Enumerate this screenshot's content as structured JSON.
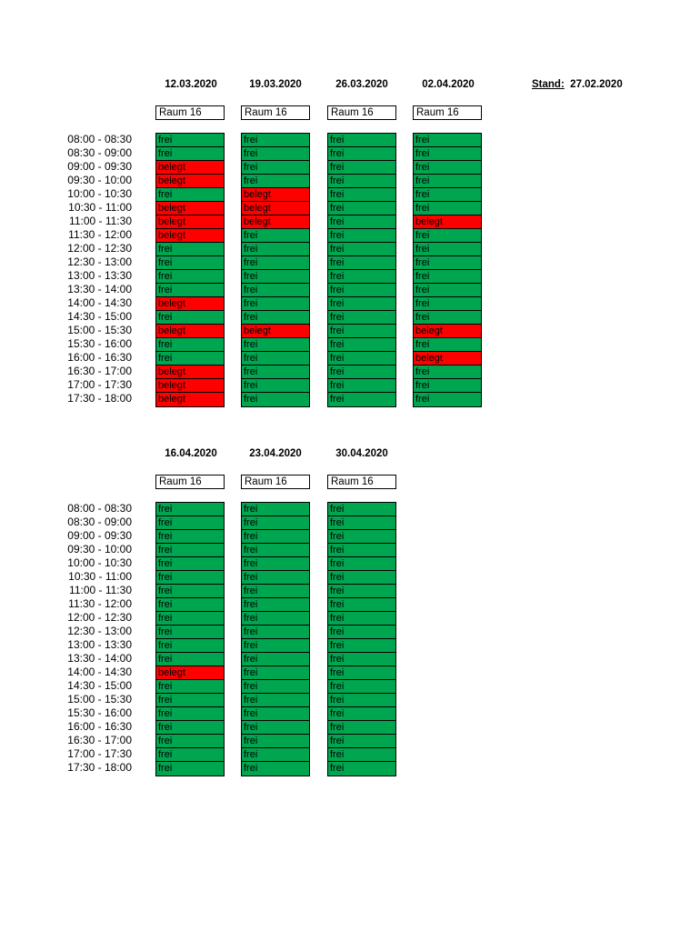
{
  "stand": {
    "label": "Stand:",
    "date": "27.02.2020"
  },
  "colors": {
    "frei": "#00a550",
    "belegt": "#ff0000"
  },
  "times": [
    "08:00 - 08:30",
    "08:30 - 09:00",
    "09:00 - 09:30",
    "09:30 - 10:00",
    "10:00 - 10:30",
    "10:30 - 11:00",
    "11:00 - 11:30",
    "11:30 - 12:00",
    "12:00 - 12:30",
    "12:30 - 13:00",
    "13:00 - 13:30",
    "13:30 - 14:00",
    "14:00 - 14:30",
    "14:30 - 15:00",
    "15:00 - 15:30",
    "15:30 - 16:00",
    "16:00 - 16:30",
    "16:30 - 17:00",
    "17:00 - 17:30",
    "17:30 - 18:00"
  ],
  "blocks": [
    {
      "days": [
        {
          "date": "12.03.2020",
          "room": "Raum 16",
          "slots": [
            "frei",
            "frei",
            "belegt",
            "belegt",
            "frei",
            "belegt",
            "belegt",
            "belegt",
            "frei",
            "frei",
            "frei",
            "frei",
            "belegt",
            "frei",
            "belegt",
            "frei",
            "frei",
            "belegt",
            "belegt",
            "belegt"
          ]
        },
        {
          "date": "19.03.2020",
          "room": "Raum 16",
          "slots": [
            "frei",
            "frei",
            "frei",
            "frei",
            "belegt",
            "belegt",
            "belegt",
            "frei",
            "frei",
            "frei",
            "frei",
            "frei",
            "frei",
            "frei",
            "belegt",
            "frei",
            "frei",
            "frei",
            "frei",
            "frei"
          ]
        },
        {
          "date": "26.03.2020",
          "room": "Raum 16",
          "slots": [
            "frei",
            "frei",
            "frei",
            "frei",
            "frei",
            "frei",
            "frei",
            "frei",
            "frei",
            "frei",
            "frei",
            "frei",
            "frei",
            "frei",
            "frei",
            "frei",
            "frei",
            "frei",
            "frei",
            "frei"
          ]
        },
        {
          "date": "02.04.2020",
          "room": "Raum 16",
          "slots": [
            "frei",
            "frei",
            "frei",
            "frei",
            "frei",
            "frei",
            "belegt",
            "frei",
            "frei",
            "frei",
            "frei",
            "frei",
            "frei",
            "frei",
            "belegt",
            "frei",
            "belegt",
            "frei",
            "frei",
            "frei"
          ]
        }
      ]
    },
    {
      "days": [
        {
          "date": "16.04.2020",
          "room": "Raum 16",
          "slots": [
            "frei",
            "frei",
            "frei",
            "frei",
            "frei",
            "frei",
            "frei",
            "frei",
            "frei",
            "frei",
            "frei",
            "frei",
            "belegt",
            "frei",
            "frei",
            "frei",
            "frei",
            "frei",
            "frei",
            "frei"
          ]
        },
        {
          "date": "23.04.2020",
          "room": "Raum 16",
          "slots": [
            "frei",
            "frei",
            "frei",
            "frei",
            "frei",
            "frei",
            "frei",
            "frei",
            "frei",
            "frei",
            "frei",
            "frei",
            "frei",
            "frei",
            "frei",
            "frei",
            "frei",
            "frei",
            "frei",
            "frei"
          ]
        },
        {
          "date": "30.04.2020",
          "room": "Raum 16",
          "slots": [
            "frei",
            "frei",
            "frei",
            "frei",
            "frei",
            "frei",
            "frei",
            "frei",
            "frei",
            "frei",
            "frei",
            "frei",
            "frei",
            "frei",
            "frei",
            "frei",
            "frei",
            "frei",
            "frei",
            "frei"
          ]
        }
      ]
    }
  ]
}
